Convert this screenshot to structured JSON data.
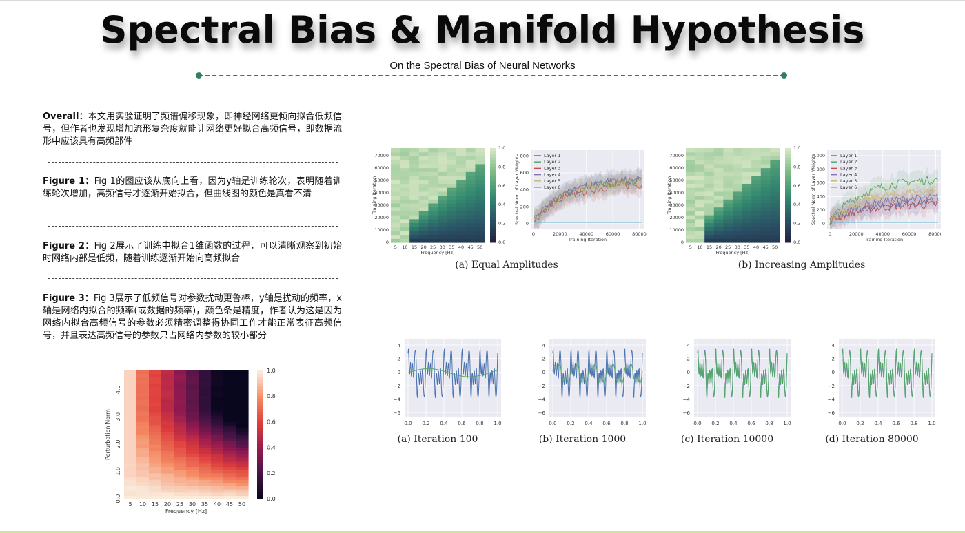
{
  "title": "Spectral Bias & Manifold Hypothesis",
  "subtitle": "On the Spectral Bias of Neural Networks",
  "paragraphs": {
    "overall_label": "Overall：",
    "overall_text": "本文用实验证明了频谱偏移现象，即神经网络更倾向拟合低频信号，但作者也发现增加流形复杂度就能让网络更好拟合高频信号，即数据流形中应该具有高频部件",
    "fig1_label": "Figure 1：",
    "fig1_text": "Fig 1的图应该从底向上看，因为y轴是训练轮次，表明随着训练轮次增加，高频信号才逐渐开始拟合，但曲线图的颜色是真看不清",
    "fig2_label": "Figure 2：",
    "fig2_text": "Fig 2展示了训练中拟合1维函数的过程，可以清晰观察到初始时网络内部是低频，随着训练逐渐开始向高频拟合",
    "fig3_label": "Figure 3：",
    "fig3_text": "Fig 3展示了低频信号对参数扰动更鲁棒，y轴是扰动的频率，x轴是网络内拟合的频率(或数据的频率)，颜色条是精度，作者认为这是因为网络内拟合高频信号的参数必须精密调整得协同工作才能正常表征高频信号，并且表达高频信号的参数只占网络内参数的较小部分"
  },
  "fig1": {
    "captions": [
      "(a) Equal Amplitudes",
      "(b) Increasing Amplitudes"
    ],
    "heatmap_x_ticks": [
      "5",
      "10",
      "15",
      "20",
      "25",
      "30",
      "35",
      "40",
      "45",
      "50"
    ],
    "heatmap_y_ticks": [
      "0",
      "10000",
      "20000",
      "30000",
      "40000",
      "50000",
      "60000",
      "70000"
    ],
    "heatmap_xlabel": "Frequency [Hz]",
    "heatmap_ylabel": "Training Iteration",
    "colorbar_ticks": [
      "0.0",
      "0.2",
      "0.4",
      "0.6",
      "0.8",
      "1.0"
    ],
    "line_xlabel": "Training Iteration",
    "line_ylabel": "Spectral Norm of Layer Weights",
    "line_x_ticks": [
      "0",
      "20000",
      "40000",
      "60000",
      "80000"
    ],
    "line_a_y_ticks": [
      "0",
      "200",
      "400",
      "600",
      "800"
    ],
    "line_b_y_ticks": [
      "0",
      "200",
      "400",
      "600",
      "800",
      "1000"
    ],
    "legend": [
      "Layer 1",
      "Layer 2",
      "Layer 3",
      "Layer 4",
      "Layer 5",
      "Layer 6"
    ],
    "legend_colors": [
      "#4c72b0",
      "#55a868",
      "#c44e52",
      "#8172b2",
      "#ccb974",
      "#64b5cd"
    ]
  },
  "fig2": {
    "captions": [
      "(a) Iteration 100",
      "(b) Iteration 1000",
      "(c) Iteration 10000",
      "(d) Iteration 80000"
    ],
    "x_ticks": [
      "0.0",
      "0.2",
      "0.4",
      "0.6",
      "0.8",
      "1.0"
    ],
    "y_ticks": [
      "4",
      "2",
      "0",
      "−2",
      "−4",
      "−6"
    ],
    "target_color": "#4c72b0",
    "fit_color": "#55a868"
  },
  "fig3": {
    "x_ticks": [
      "5",
      "10",
      "15",
      "20",
      "25",
      "30",
      "35",
      "40",
      "45",
      "50"
    ],
    "y_ticks": [
      "0.0",
      "1.0",
      "2.0",
      "3.0",
      "4.0"
    ],
    "xlabel": "Frequency [Hz]",
    "ylabel": "Perturbation Norm",
    "colorbar_ticks": [
      "1.0",
      "0.8",
      "0.6",
      "0.4",
      "0.2",
      "0.0"
    ]
  },
  "colors": {
    "accent": "#2f7f5d",
    "bottom_bar": "#cfe39c"
  }
}
